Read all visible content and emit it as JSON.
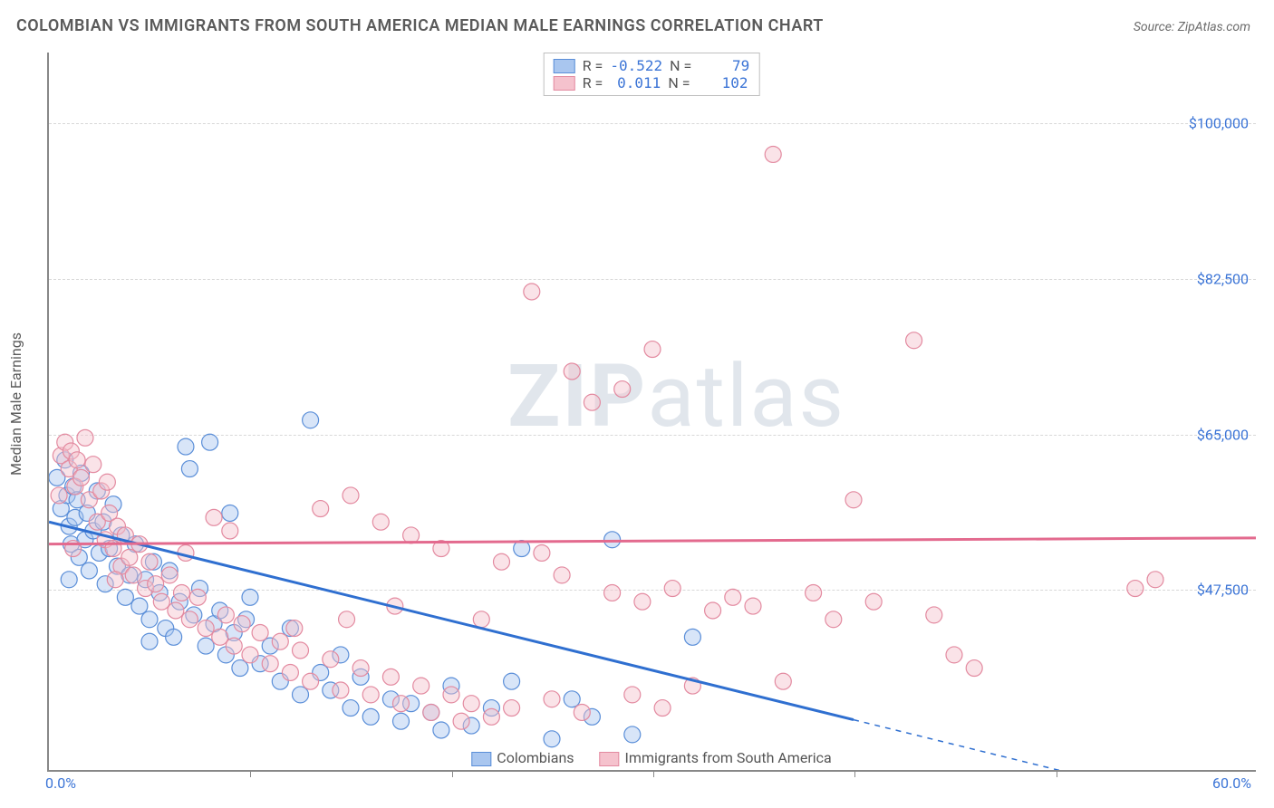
{
  "title": "COLOMBIAN VS IMMIGRANTS FROM SOUTH AMERICA MEDIAN MALE EARNINGS CORRELATION CHART",
  "source": "Source: ZipAtlas.com",
  "ylabel": "Median Male Earnings",
  "watermark": {
    "bold": "ZIP",
    "light": "atlas"
  },
  "chart": {
    "type": "scatter-with-regression",
    "background_color": "#ffffff",
    "grid_color": "#d8d8d8",
    "axis_color": "#888888",
    "marker_radius": 9,
    "marker_opacity": 0.45,
    "line_width": 3,
    "xlim": [
      0,
      60
    ],
    "ylim": [
      27000,
      108000
    ],
    "xticks": [
      {
        "v": 0,
        "label": "0.0%"
      },
      {
        "v": 60,
        "label": "60.0%"
      }
    ],
    "xtick_marks": [
      10,
      20,
      30,
      40,
      50
    ],
    "yticks": [
      {
        "v": 47500,
        "label": "$47,500"
      },
      {
        "v": 65000,
        "label": "$65,000"
      },
      {
        "v": 82500,
        "label": "$82,500"
      },
      {
        "v": 100000,
        "label": "$100,000"
      }
    ],
    "series": [
      {
        "name": "Colombians",
        "label": "Colombians",
        "fill": "#a9c6ef",
        "stroke": "#5a8ed8",
        "line_color": "#2f6fd0",
        "R": "-0.522",
        "N": "79",
        "regression": {
          "x1": 0,
          "y1": 55000,
          "x2": 60,
          "y2": 21500,
          "dash_from_x": 40
        },
        "points": [
          [
            0.4,
            60000
          ],
          [
            0.6,
            56500
          ],
          [
            0.8,
            62000
          ],
          [
            0.9,
            58000
          ],
          [
            1.0,
            54500
          ],
          [
            1.1,
            52500
          ],
          [
            1.2,
            59000
          ],
          [
            1.3,
            55500
          ],
          [
            1.4,
            57500
          ],
          [
            1.5,
            51000
          ],
          [
            1.6,
            60500
          ],
          [
            1.8,
            53000
          ],
          [
            1.9,
            56000
          ],
          [
            2.0,
            49500
          ],
          [
            2.2,
            54000
          ],
          [
            2.4,
            58500
          ],
          [
            2.5,
            51500
          ],
          [
            2.7,
            55000
          ],
          [
            2.8,
            48000
          ],
          [
            3.0,
            52000
          ],
          [
            3.2,
            57000
          ],
          [
            3.4,
            50000
          ],
          [
            3.6,
            53500
          ],
          [
            3.8,
            46500
          ],
          [
            4.0,
            49000
          ],
          [
            4.3,
            52500
          ],
          [
            4.5,
            45500
          ],
          [
            4.8,
            48500
          ],
          [
            5.0,
            44000
          ],
          [
            5.2,
            50500
          ],
          [
            5.5,
            47000
          ],
          [
            5.8,
            43000
          ],
          [
            6.0,
            49500
          ],
          [
            6.2,
            42000
          ],
          [
            6.5,
            46000
          ],
          [
            6.8,
            63500
          ],
          [
            7.0,
            61000
          ],
          [
            7.2,
            44500
          ],
          [
            7.5,
            47500
          ],
          [
            7.8,
            41000
          ],
          [
            8.0,
            64000
          ],
          [
            8.2,
            43500
          ],
          [
            8.5,
            45000
          ],
          [
            8.8,
            40000
          ],
          [
            9.0,
            56000
          ],
          [
            9.2,
            42500
          ],
          [
            9.5,
            38500
          ],
          [
            9.8,
            44000
          ],
          [
            10.0,
            46500
          ],
          [
            10.5,
            39000
          ],
          [
            11.0,
            41000
          ],
          [
            11.5,
            37000
          ],
          [
            12.0,
            43000
          ],
          [
            12.5,
            35500
          ],
          [
            13.0,
            66500
          ],
          [
            13.5,
            38000
          ],
          [
            14.0,
            36000
          ],
          [
            14.5,
            40000
          ],
          [
            15.0,
            34000
          ],
          [
            15.5,
            37500
          ],
          [
            16.0,
            33000
          ],
          [
            17.0,
            35000
          ],
          [
            17.5,
            32500
          ],
          [
            18.0,
            34500
          ],
          [
            19.0,
            33500
          ],
          [
            19.5,
            31500
          ],
          [
            20.0,
            36500
          ],
          [
            21.0,
            32000
          ],
          [
            22.0,
            34000
          ],
          [
            23.0,
            37000
          ],
          [
            23.5,
            52000
          ],
          [
            25.0,
            30500
          ],
          [
            26.0,
            35000
          ],
          [
            27.0,
            33000
          ],
          [
            28.0,
            53000
          ],
          [
            29.0,
            31000
          ],
          [
            32.0,
            42000
          ],
          [
            5.0,
            41500
          ],
          [
            1.0,
            48500
          ]
        ]
      },
      {
        "name": "Immigrants from South America",
        "label": "Immigrants from South America",
        "fill": "#f5c2cd",
        "stroke": "#e38aa0",
        "line_color": "#e36a8e",
        "R": "0.011",
        "N": "102",
        "regression": {
          "x1": 0,
          "y1": 52500,
          "x2": 60,
          "y2": 53200
        },
        "points": [
          [
            0.6,
            62500
          ],
          [
            0.8,
            64000
          ],
          [
            1.0,
            61000
          ],
          [
            1.1,
            63000
          ],
          [
            1.3,
            59000
          ],
          [
            1.4,
            62000
          ],
          [
            1.6,
            60000
          ],
          [
            1.8,
            64500
          ],
          [
            2.0,
            57500
          ],
          [
            2.2,
            61500
          ],
          [
            2.4,
            55000
          ],
          [
            2.6,
            58500
          ],
          [
            2.8,
            53000
          ],
          [
            3.0,
            56000
          ],
          [
            3.2,
            52000
          ],
          [
            3.4,
            54500
          ],
          [
            3.6,
            50000
          ],
          [
            3.8,
            53500
          ],
          [
            4.0,
            51000
          ],
          [
            4.2,
            49000
          ],
          [
            4.5,
            52500
          ],
          [
            4.8,
            47500
          ],
          [
            5.0,
            50500
          ],
          [
            5.3,
            48000
          ],
          [
            5.6,
            46000
          ],
          [
            6.0,
            49000
          ],
          [
            6.3,
            45000
          ],
          [
            6.6,
            47000
          ],
          [
            7.0,
            44000
          ],
          [
            7.4,
            46500
          ],
          [
            7.8,
            43000
          ],
          [
            8.2,
            55500
          ],
          [
            8.5,
            42000
          ],
          [
            8.8,
            44500
          ],
          [
            9.2,
            41000
          ],
          [
            9.6,
            43500
          ],
          [
            10.0,
            40000
          ],
          [
            10.5,
            42500
          ],
          [
            11.0,
            39000
          ],
          [
            11.5,
            41500
          ],
          [
            12.0,
            38000
          ],
          [
            12.5,
            40500
          ],
          [
            13.0,
            37000
          ],
          [
            13.5,
            56500
          ],
          [
            14.0,
            39500
          ],
          [
            14.5,
            36000
          ],
          [
            15.0,
            58000
          ],
          [
            15.5,
            38500
          ],
          [
            16.0,
            35500
          ],
          [
            16.5,
            55000
          ],
          [
            17.0,
            37500
          ],
          [
            17.5,
            34500
          ],
          [
            18.0,
            53500
          ],
          [
            18.5,
            36500
          ],
          [
            19.0,
            33500
          ],
          [
            19.5,
            52000
          ],
          [
            20.0,
            35500
          ],
          [
            20.5,
            32500
          ],
          [
            21.0,
            34500
          ],
          [
            22.0,
            33000
          ],
          [
            22.5,
            50500
          ],
          [
            23.0,
            34000
          ],
          [
            24.0,
            81000
          ],
          [
            24.5,
            51500
          ],
          [
            25.0,
            35000
          ],
          [
            25.5,
            49000
          ],
          [
            26.0,
            72000
          ],
          [
            26.5,
            33500
          ],
          [
            27.0,
            68500
          ],
          [
            28.0,
            47000
          ],
          [
            28.5,
            70000
          ],
          [
            29.0,
            35500
          ],
          [
            29.5,
            46000
          ],
          [
            30.0,
            74500
          ],
          [
            30.5,
            34000
          ],
          [
            31.0,
            47500
          ],
          [
            32.0,
            36500
          ],
          [
            33.0,
            45000
          ],
          [
            34.0,
            46500
          ],
          [
            35.0,
            45500
          ],
          [
            36.0,
            96500
          ],
          [
            36.5,
            37000
          ],
          [
            38.0,
            47000
          ],
          [
            39.0,
            44000
          ],
          [
            40.0,
            57500
          ],
          [
            41.0,
            46000
          ],
          [
            43.0,
            75500
          ],
          [
            44.0,
            44500
          ],
          [
            45.0,
            40000
          ],
          [
            46.0,
            38500
          ],
          [
            54.0,
            47500
          ],
          [
            55.0,
            48500
          ],
          [
            1.2,
            52000
          ],
          [
            0.5,
            58000
          ],
          [
            2.9,
            59500
          ],
          [
            3.3,
            48500
          ],
          [
            6.8,
            51500
          ],
          [
            9.0,
            54000
          ],
          [
            12.2,
            43000
          ],
          [
            14.8,
            44000
          ],
          [
            17.2,
            45500
          ],
          [
            21.5,
            44000
          ]
        ]
      }
    ]
  },
  "legend_bottom": [
    {
      "label": "Colombians",
      "fill": "#a9c6ef",
      "stroke": "#5a8ed8"
    },
    {
      "label": "Immigrants from South America",
      "fill": "#f5c2cd",
      "stroke": "#e38aa0"
    }
  ]
}
